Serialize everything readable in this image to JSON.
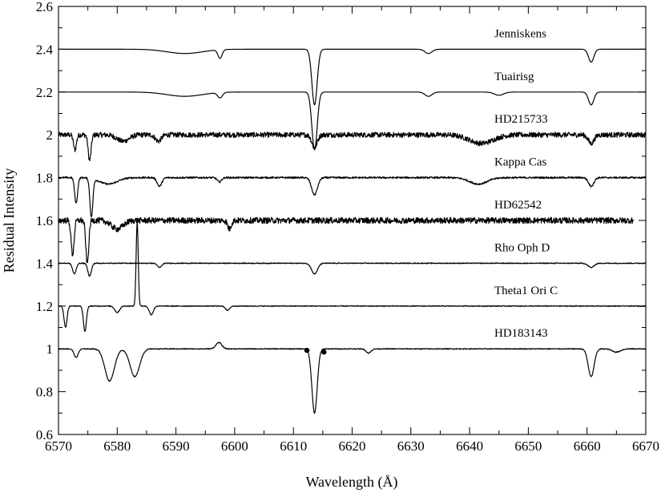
{
  "chart_data": {
    "type": "line",
    "title": "",
    "xlabel": "Wavelength (Å)",
    "ylabel": "Residual Intensity",
    "xlim": [
      6570,
      6670
    ],
    "ylim": [
      0.6,
      2.6
    ],
    "x_major_ticks": [
      6570,
      6580,
      6590,
      6600,
      6610,
      6620,
      6630,
      6640,
      6650,
      6660,
      6670
    ],
    "x_tick_labels": [
      "6570",
      "6580",
      "6590",
      "6600",
      "6610",
      "6620",
      "6630",
      "6640",
      "6650",
      "6660",
      "6670"
    ],
    "y_major_ticks": [
      0.6,
      0.8,
      1.0,
      1.2,
      1.4,
      1.6,
      1.8,
      2.0,
      2.2,
      2.4,
      2.6
    ],
    "y_tick_labels": [
      "0.6",
      "0.8",
      "1",
      "1.2",
      "1.4",
      "1.6",
      "1.8",
      "2",
      "2.2",
      "2.4",
      "2.6"
    ],
    "grid": false,
    "legend": "none; each spectrum is labelled directly on the plot",
    "series": [
      {
        "name": "Jenniskens",
        "baseline": 2.4,
        "noise": 0.0,
        "x_range": [
          6570,
          6670
        ],
        "features": [
          {
            "center": 6591.5,
            "depth": 0.02,
            "width": 3.0
          },
          {
            "center": 6597.5,
            "depth": 0.04,
            "width": 0.35
          },
          {
            "center": 6613.6,
            "depth": 0.26,
            "width": 0.45
          },
          {
            "center": 6633.0,
            "depth": 0.02,
            "width": 0.6
          },
          {
            "center": 6660.7,
            "depth": 0.06,
            "width": 0.45
          }
        ]
      },
      {
        "name": "Tuairisg",
        "baseline": 2.2,
        "noise": 0.0,
        "x_range": [
          6570,
          6670
        ],
        "features": [
          {
            "center": 6591.5,
            "depth": 0.02,
            "width": 3.0
          },
          {
            "center": 6597.5,
            "depth": 0.025,
            "width": 0.4
          },
          {
            "center": 6613.6,
            "depth": 0.27,
            "width": 0.45
          },
          {
            "center": 6633.0,
            "depth": 0.02,
            "width": 0.6
          },
          {
            "center": 6645.0,
            "depth": 0.015,
            "width": 0.8
          },
          {
            "center": 6660.7,
            "depth": 0.06,
            "width": 0.45
          }
        ]
      },
      {
        "name": "HD215733",
        "baseline": 2.0,
        "noise": 0.012,
        "x_range": [
          6570,
          6670
        ],
        "features": [
          {
            "center": 6572.8,
            "depth": 0.07,
            "width": 0.25
          },
          {
            "center": 6575.3,
            "depth": 0.12,
            "width": 0.25
          },
          {
            "center": 6581.0,
            "depth": 0.03,
            "width": 1.0
          },
          {
            "center": 6587.0,
            "depth": 0.03,
            "width": 0.5
          },
          {
            "center": 6613.6,
            "depth": 0.06,
            "width": 0.45
          },
          {
            "center": 6642.0,
            "depth": 0.04,
            "width": 2.0
          },
          {
            "center": 6660.7,
            "depth": 0.04,
            "width": 0.5
          }
        ]
      },
      {
        "name": "Kappa Cas",
        "baseline": 1.8,
        "noise": 0.004,
        "x_range": [
          6570,
          6670
        ],
        "features": [
          {
            "center": 6573.0,
            "depth": 0.12,
            "width": 0.25
          },
          {
            "center": 6575.6,
            "depth": 0.18,
            "width": 0.25
          },
          {
            "center": 6578.5,
            "depth": 0.03,
            "width": 1.5
          },
          {
            "center": 6587.2,
            "depth": 0.04,
            "width": 0.4
          },
          {
            "center": 6597.4,
            "depth": 0.02,
            "width": 0.35
          },
          {
            "center": 6613.6,
            "depth": 0.08,
            "width": 0.5
          },
          {
            "center": 6641.5,
            "depth": 0.03,
            "width": 1.5
          },
          {
            "center": 6660.7,
            "depth": 0.04,
            "width": 0.45
          }
        ]
      },
      {
        "name": "HD62542",
        "baseline": 1.6,
        "noise": 0.014,
        "x_range": [
          6570,
          6668
        ],
        "features": [
          {
            "center": 6572.4,
            "depth": 0.16,
            "width": 0.25
          },
          {
            "center": 6574.9,
            "depth": 0.2,
            "width": 0.25
          },
          {
            "center": 6580.0,
            "depth": 0.04,
            "width": 1.0
          },
          {
            "center": 6599.1,
            "depth": 0.04,
            "width": 0.3
          }
        ]
      },
      {
        "name": "Rho Oph D",
        "baseline": 1.4,
        "noise": 0.002,
        "x_range": [
          6570,
          6670
        ],
        "features": [
          {
            "center": 6572.7,
            "depth": 0.05,
            "width": 0.3
          },
          {
            "center": 6575.3,
            "depth": 0.06,
            "width": 0.3
          },
          {
            "center": 6587.2,
            "depth": 0.02,
            "width": 0.35
          },
          {
            "center": 6613.6,
            "depth": 0.05,
            "width": 0.5
          },
          {
            "center": 6660.7,
            "depth": 0.02,
            "width": 0.5
          }
        ]
      },
      {
        "name": "Theta1 Ori C",
        "baseline": 1.2,
        "noise": 0.002,
        "x_range": [
          6570,
          6670
        ],
        "features": [
          {
            "center": 6571.2,
            "depth": 0.1,
            "width": 0.25
          },
          {
            "center": 6574.5,
            "depth": 0.12,
            "width": 0.25
          },
          {
            "center": 6580.0,
            "depth": 0.03,
            "width": 0.4
          },
          {
            "center": 6583.4,
            "depth": -0.39,
            "width": 0.18
          },
          {
            "center": 6585.8,
            "depth": 0.04,
            "width": 0.35
          },
          {
            "center": 6598.8,
            "depth": 0.02,
            "width": 0.35
          }
        ]
      },
      {
        "name": "HD183143",
        "baseline": 1.0,
        "noise": 0.002,
        "x_range": [
          6570,
          6670
        ],
        "features": [
          {
            "center": 6573.0,
            "depth": 0.04,
            "width": 0.35
          },
          {
            "center": 6578.7,
            "depth": 0.15,
            "width": 0.8
          },
          {
            "center": 6583.0,
            "depth": 0.13,
            "width": 0.8
          },
          {
            "center": 6597.3,
            "depth": -0.03,
            "width": 0.5
          },
          {
            "center": 6613.6,
            "depth": 0.3,
            "width": 0.45
          },
          {
            "center": 6622.8,
            "depth": 0.02,
            "width": 0.4
          },
          {
            "center": 6660.7,
            "depth": 0.13,
            "width": 0.5
          },
          {
            "center": 6665.0,
            "depth": 0.015,
            "width": 0.7
          }
        ],
        "markers": [
          {
            "x": 6612.3,
            "y": 0.993
          },
          {
            "x": 6615.2,
            "y": 0.985
          }
        ]
      }
    ]
  }
}
